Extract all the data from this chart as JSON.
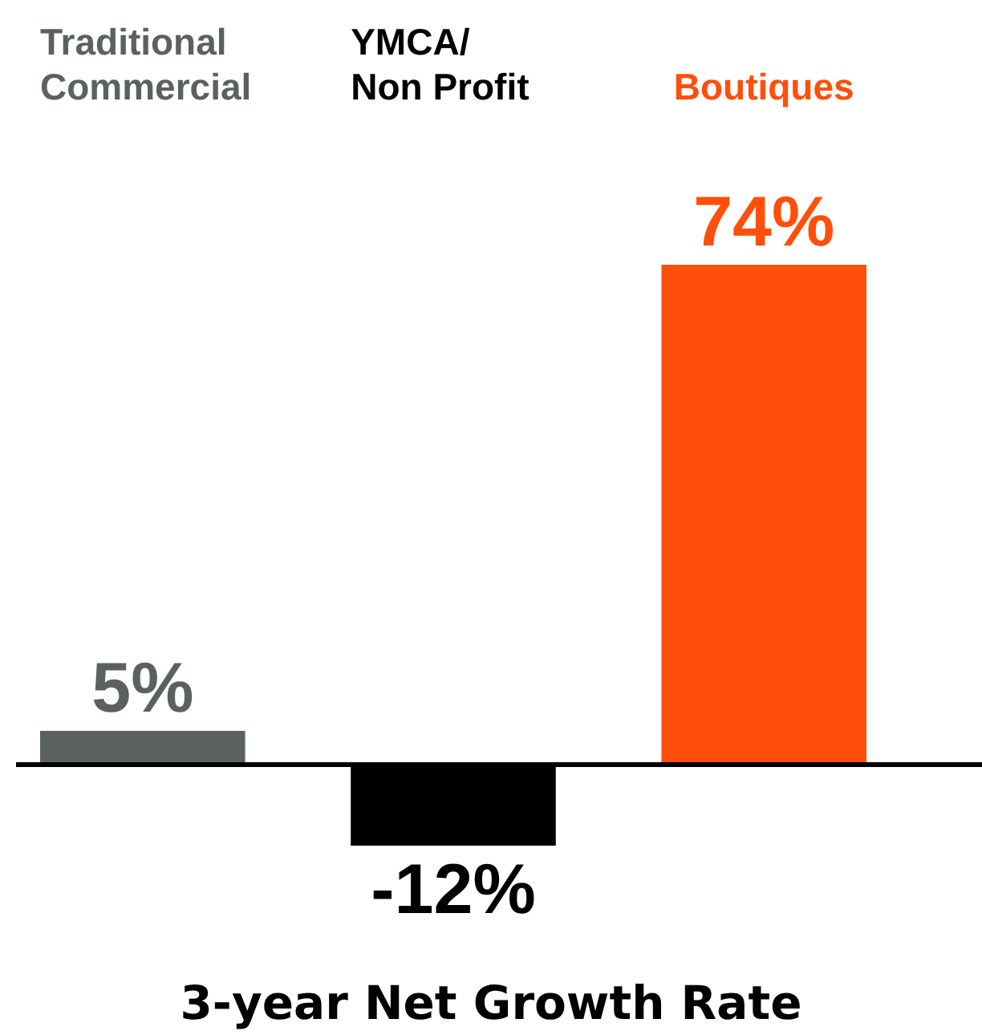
{
  "chart_data": {
    "type": "bar",
    "xlabel": "3-year Net Growth Rate",
    "categories": [
      "Traditional\nCommercial",
      "YMCA/\nNon Profit",
      "Boutiques"
    ],
    "values": [
      5,
      -12,
      74
    ],
    "colors": [
      "#5b625e",
      "#000000",
      "#ff4f0a"
    ],
    "value_labels": [
      "5%",
      "-12%",
      "74%"
    ]
  }
}
